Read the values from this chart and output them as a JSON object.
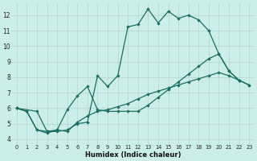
{
  "xlabel": "Humidex (Indice chaleur)",
  "bg_color": "#cceee8",
  "grid_color": "#b8d8d4",
  "line_color": "#1a6e62",
  "xlim": [
    -0.5,
    23.5
  ],
  "ylim": [
    3.7,
    12.8
  ],
  "yticks": [
    4,
    5,
    6,
    7,
    8,
    9,
    10,
    11,
    12
  ],
  "xticks": [
    0,
    1,
    2,
    3,
    4,
    5,
    6,
    7,
    8,
    9,
    10,
    11,
    12,
    13,
    14,
    15,
    16,
    17,
    18,
    19,
    20,
    21,
    22,
    23
  ],
  "line1_x": [
    0,
    1,
    2,
    3,
    4,
    5,
    6,
    7,
    8,
    9,
    10,
    11,
    12,
    13,
    14,
    15,
    16,
    17,
    18,
    19,
    20,
    21,
    22
  ],
  "line1_y": [
    6.0,
    5.8,
    4.6,
    4.5,
    4.5,
    4.6,
    5.0,
    5.1,
    8.1,
    7.4,
    8.1,
    11.25,
    11.4,
    12.4,
    11.5,
    12.25,
    11.8,
    12.0,
    11.7,
    11.0,
    9.5,
    8.4,
    7.8
  ],
  "line2_x": [
    0,
    2,
    3,
    4,
    5,
    6,
    7,
    8,
    9,
    10,
    11,
    12,
    13,
    14,
    15,
    16,
    17,
    18,
    19,
    20,
    21,
    22,
    23
  ],
  "line2_y": [
    6.0,
    5.8,
    4.5,
    4.6,
    5.9,
    6.8,
    7.4,
    5.9,
    5.8,
    5.8,
    5.8,
    5.8,
    6.2,
    6.7,
    7.2,
    7.7,
    8.2,
    8.7,
    9.2,
    9.5,
    8.4,
    7.8,
    7.5
  ],
  "line3_x": [
    0,
    1,
    2,
    3,
    4,
    5,
    6,
    7,
    8,
    9,
    10,
    11,
    12,
    13,
    14,
    15,
    16,
    17,
    18,
    19,
    20,
    21,
    22,
    23
  ],
  "line3_y": [
    6.0,
    5.8,
    4.6,
    4.4,
    4.6,
    4.5,
    5.1,
    5.5,
    5.8,
    5.9,
    6.1,
    6.3,
    6.6,
    6.9,
    7.1,
    7.3,
    7.5,
    7.7,
    7.9,
    8.1,
    8.3,
    8.1,
    7.8,
    7.5
  ]
}
